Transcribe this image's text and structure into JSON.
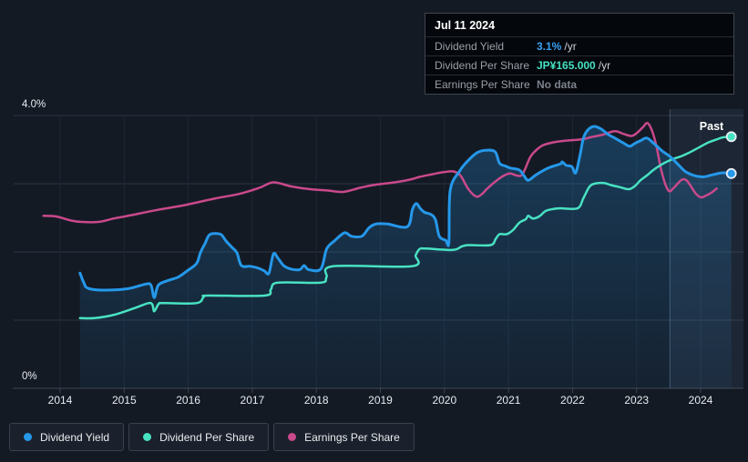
{
  "colors": {
    "background": "#141a24",
    "grid_horizontal": "#2a3544",
    "grid_vertical": "#1e2734",
    "axis_line": "#3d4654",
    "axis_text": "#e8ebef",
    "area_fill": "#2486cd",
    "past_fill": "rgba(125,170,220,0.09)",
    "past_edge": "rgba(160,200,240,0.30)",
    "past_label": "#ffffff",
    "dot_ring": "#e8eef5",
    "dividend_yield": "#2598ea",
    "dividend_per_share": "#48e2c2",
    "earnings_per_share": "#c9498b",
    "tooltip_value_yield": "#38a1f4",
    "tooltip_value_dps": "#45e1c1",
    "tooltip_value_muted": "#7c828c"
  },
  "tooltip": {
    "date": "Jul 11 2024",
    "rows": [
      {
        "label": "Dividend Yield",
        "value": "3.1%",
        "suffix": "/yr",
        "value_color": "#38a1f4"
      },
      {
        "label": "Dividend Per Share",
        "value": "JP¥165.000",
        "suffix": "/yr",
        "value_color": "#45e1c1"
      },
      {
        "label": "Earnings Per Share",
        "value": "No data",
        "suffix": "",
        "value_color": "#7c828c"
      }
    ]
  },
  "legend": {
    "items": [
      {
        "label": "Dividend Yield",
        "color": "#2598ea"
      },
      {
        "label": "Dividend Per Share",
        "color": "#48e2c2"
      },
      {
        "label": "Earnings Per Share",
        "color": "#c9498b"
      }
    ]
  },
  "chart_data": {
    "type": "line",
    "title": "Dividend history chart",
    "x_axis": {
      "ticks": [
        2014,
        2015,
        2016,
        2017,
        2018,
        2019,
        2020,
        2021,
        2022,
        2023,
        2024
      ],
      "range": [
        2013.63,
        2024.74
      ]
    },
    "y_axis": {
      "label_top": "4.0%",
      "label_bottom": "0%",
      "ylim": [
        0,
        4
      ],
      "unit": "%",
      "gridlines": [
        0,
        1,
        2,
        3,
        4
      ]
    },
    "past_region": {
      "label": "Past",
      "x_start": 2023.52
    },
    "series": [
      {
        "name": "Dividend Yield",
        "color": "#2598ea",
        "width": 3,
        "area": true,
        "end_dot": true,
        "points": [
          [
            2014.31,
            1.69
          ],
          [
            2014.37,
            1.55
          ],
          [
            2014.43,
            1.47
          ],
          [
            2014.65,
            1.44
          ],
          [
            2015.05,
            1.46
          ],
          [
            2015.34,
            1.53
          ],
          [
            2015.42,
            1.51
          ],
          [
            2015.47,
            1.33
          ],
          [
            2015.53,
            1.51
          ],
          [
            2015.65,
            1.57
          ],
          [
            2015.84,
            1.63
          ],
          [
            2015.98,
            1.72
          ],
          [
            2016.13,
            1.83
          ],
          [
            2016.19,
            1.99
          ],
          [
            2016.26,
            2.12
          ],
          [
            2016.33,
            2.25
          ],
          [
            2016.43,
            2.27
          ],
          [
            2016.52,
            2.25
          ],
          [
            2016.59,
            2.16
          ],
          [
            2016.68,
            2.07
          ],
          [
            2016.76,
            1.99
          ],
          [
            2016.83,
            1.8
          ],
          [
            2016.97,
            1.79
          ],
          [
            2017.1,
            1.76
          ],
          [
            2017.19,
            1.72
          ],
          [
            2017.26,
            1.69
          ],
          [
            2017.33,
            1.97
          ],
          [
            2017.4,
            1.91
          ],
          [
            2017.49,
            1.8
          ],
          [
            2017.6,
            1.75
          ],
          [
            2017.74,
            1.74
          ],
          [
            2017.81,
            1.8
          ],
          [
            2017.88,
            1.74
          ],
          [
            2018.07,
            1.75
          ],
          [
            2018.16,
            2.04
          ],
          [
            2018.28,
            2.16
          ],
          [
            2018.44,
            2.28
          ],
          [
            2018.55,
            2.23
          ],
          [
            2018.71,
            2.23
          ],
          [
            2018.82,
            2.35
          ],
          [
            2018.93,
            2.41
          ],
          [
            2019.11,
            2.41
          ],
          [
            2019.42,
            2.37
          ],
          [
            2019.5,
            2.62
          ],
          [
            2019.56,
            2.71
          ],
          [
            2019.62,
            2.64
          ],
          [
            2019.69,
            2.58
          ],
          [
            2019.79,
            2.55
          ],
          [
            2019.86,
            2.47
          ],
          [
            2019.92,
            2.23
          ],
          [
            2020.02,
            2.17
          ],
          [
            2020.07,
            2.14
          ],
          [
            2020.09,
            2.9
          ],
          [
            2020.24,
            3.19
          ],
          [
            2020.36,
            3.33
          ],
          [
            2020.5,
            3.45
          ],
          [
            2020.64,
            3.49
          ],
          [
            2020.79,
            3.47
          ],
          [
            2020.86,
            3.3
          ],
          [
            2020.95,
            3.26
          ],
          [
            2021.03,
            3.23
          ],
          [
            2021.17,
            3.2
          ],
          [
            2021.24,
            3.12
          ],
          [
            2021.31,
            3.05
          ],
          [
            2021.43,
            3.13
          ],
          [
            2021.62,
            3.23
          ],
          [
            2021.81,
            3.29
          ],
          [
            2021.84,
            3.32
          ],
          [
            2021.9,
            3.27
          ],
          [
            2021.99,
            3.25
          ],
          [
            2022.05,
            3.16
          ],
          [
            2022.12,
            3.43
          ],
          [
            2022.17,
            3.67
          ],
          [
            2022.24,
            3.79
          ],
          [
            2022.34,
            3.84
          ],
          [
            2022.45,
            3.8
          ],
          [
            2022.56,
            3.72
          ],
          [
            2022.66,
            3.67
          ],
          [
            2022.79,
            3.6
          ],
          [
            2022.89,
            3.55
          ],
          [
            2022.97,
            3.59
          ],
          [
            2023.06,
            3.63
          ],
          [
            2023.16,
            3.67
          ],
          [
            2023.27,
            3.59
          ],
          [
            2023.4,
            3.48
          ],
          [
            2023.52,
            3.4
          ],
          [
            2023.64,
            3.29
          ],
          [
            2023.76,
            3.18
          ],
          [
            2023.9,
            3.12
          ],
          [
            2024.04,
            3.1
          ],
          [
            2024.18,
            3.13
          ],
          [
            2024.34,
            3.16
          ],
          [
            2024.48,
            3.15
          ]
        ]
      },
      {
        "name": "Dividend Per Share",
        "color": "#48e2c2",
        "width": 2.5,
        "area": false,
        "end_dot": true,
        "points": [
          [
            2014.31,
            1.03
          ],
          [
            2014.54,
            1.03
          ],
          [
            2014.85,
            1.08
          ],
          [
            2015.2,
            1.19
          ],
          [
            2015.38,
            1.25
          ],
          [
            2015.44,
            1.23
          ],
          [
            2015.47,
            1.13
          ],
          [
            2015.54,
            1.24
          ],
          [
            2015.62,
            1.25
          ],
          [
            2016.13,
            1.25
          ],
          [
            2016.24,
            1.34
          ],
          [
            2016.31,
            1.36
          ],
          [
            2017.19,
            1.36
          ],
          [
            2017.29,
            1.45
          ],
          [
            2017.4,
            1.55
          ],
          [
            2018.07,
            1.55
          ],
          [
            2018.16,
            1.63
          ],
          [
            2018.26,
            1.79
          ],
          [
            2019.49,
            1.79
          ],
          [
            2019.55,
            1.95
          ],
          [
            2019.61,
            2.04
          ],
          [
            2019.7,
            2.05
          ],
          [
            2020.13,
            2.03
          ],
          [
            2020.27,
            2.08
          ],
          [
            2020.38,
            2.1
          ],
          [
            2020.72,
            2.1
          ],
          [
            2020.8,
            2.19
          ],
          [
            2020.86,
            2.26
          ],
          [
            2020.97,
            2.26
          ],
          [
            2021.07,
            2.32
          ],
          [
            2021.17,
            2.43
          ],
          [
            2021.27,
            2.48
          ],
          [
            2021.31,
            2.53
          ],
          [
            2021.38,
            2.49
          ],
          [
            2021.48,
            2.52
          ],
          [
            2021.58,
            2.6
          ],
          [
            2021.7,
            2.63
          ],
          [
            2021.81,
            2.64
          ],
          [
            2022.08,
            2.64
          ],
          [
            2022.17,
            2.79
          ],
          [
            2022.26,
            2.95
          ],
          [
            2022.34,
            3.0
          ],
          [
            2022.49,
            3.01
          ],
          [
            2022.6,
            2.98
          ],
          [
            2022.74,
            2.95
          ],
          [
            2022.88,
            2.92
          ],
          [
            2022.98,
            2.97
          ],
          [
            2023.06,
            3.05
          ],
          [
            2023.16,
            3.12
          ],
          [
            2023.26,
            3.2
          ],
          [
            2023.37,
            3.27
          ],
          [
            2023.49,
            3.33
          ],
          [
            2023.59,
            3.37
          ],
          [
            2023.69,
            3.4
          ],
          [
            2023.81,
            3.45
          ],
          [
            2023.97,
            3.53
          ],
          [
            2024.11,
            3.6
          ],
          [
            2024.25,
            3.65
          ],
          [
            2024.35,
            3.68
          ],
          [
            2024.48,
            3.69
          ]
        ]
      },
      {
        "name": "Earnings Per Share",
        "color": "#c9498b",
        "width": 2.5,
        "area": false,
        "end_dot": false,
        "points": [
          [
            2013.74,
            2.53
          ],
          [
            2013.94,
            2.52
          ],
          [
            2014.17,
            2.46
          ],
          [
            2014.34,
            2.44
          ],
          [
            2014.6,
            2.44
          ],
          [
            2014.84,
            2.49
          ],
          [
            2015.12,
            2.54
          ],
          [
            2015.48,
            2.61
          ],
          [
            2015.91,
            2.68
          ],
          [
            2016.4,
            2.78
          ],
          [
            2016.79,
            2.85
          ],
          [
            2017.11,
            2.94
          ],
          [
            2017.33,
            3.02
          ],
          [
            2017.61,
            2.96
          ],
          [
            2017.9,
            2.92
          ],
          [
            2018.18,
            2.9
          ],
          [
            2018.42,
            2.88
          ],
          [
            2018.68,
            2.94
          ],
          [
            2018.89,
            2.98
          ],
          [
            2019.22,
            3.02
          ],
          [
            2019.46,
            3.06
          ],
          [
            2019.61,
            3.1
          ],
          [
            2019.82,
            3.14
          ],
          [
            2019.99,
            3.17
          ],
          [
            2020.14,
            3.18
          ],
          [
            2020.25,
            3.12
          ],
          [
            2020.36,
            2.94
          ],
          [
            2020.45,
            2.84
          ],
          [
            2020.52,
            2.81
          ],
          [
            2020.6,
            2.86
          ],
          [
            2020.67,
            2.93
          ],
          [
            2020.82,
            3.05
          ],
          [
            2020.93,
            3.12
          ],
          [
            2021.03,
            3.15
          ],
          [
            2021.13,
            3.12
          ],
          [
            2021.22,
            3.14
          ],
          [
            2021.34,
            3.39
          ],
          [
            2021.43,
            3.49
          ],
          [
            2021.53,
            3.56
          ],
          [
            2021.67,
            3.6
          ],
          [
            2021.88,
            3.63
          ],
          [
            2022.14,
            3.65
          ],
          [
            2022.28,
            3.68
          ],
          [
            2022.48,
            3.72
          ],
          [
            2022.66,
            3.77
          ],
          [
            2022.8,
            3.73
          ],
          [
            2022.92,
            3.7
          ],
          [
            2023.0,
            3.74
          ],
          [
            2023.1,
            3.83
          ],
          [
            2023.17,
            3.89
          ],
          [
            2023.24,
            3.78
          ],
          [
            2023.31,
            3.55
          ],
          [
            2023.38,
            3.22
          ],
          [
            2023.45,
            2.99
          ],
          [
            2023.51,
            2.89
          ],
          [
            2023.58,
            2.94
          ],
          [
            2023.65,
            3.01
          ],
          [
            2023.71,
            3.06
          ],
          [
            2023.78,
            3.05
          ],
          [
            2023.85,
            2.96
          ],
          [
            2023.93,
            2.85
          ],
          [
            2024.01,
            2.8
          ],
          [
            2024.09,
            2.83
          ],
          [
            2024.17,
            2.87
          ],
          [
            2024.25,
            2.93
          ]
        ]
      }
    ]
  }
}
